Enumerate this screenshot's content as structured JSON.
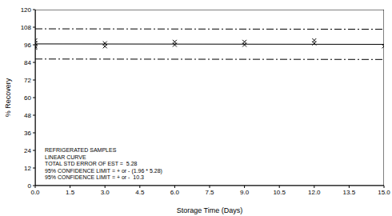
{
  "chart_data": {
    "type": "scatter",
    "x_label": "Storage Time (Days)",
    "y_label": "% Recovery",
    "xlim": [
      0,
      15
    ],
    "xticks": [
      {
        "value": 0,
        "label": "0.0"
      },
      1.5,
      {
        "value": 3,
        "label": "3.0"
      },
      4.5,
      {
        "value": 6,
        "label": "6.0"
      },
      7.5,
      {
        "value": 9,
        "label": "9.0"
      },
      10.5,
      {
        "value": 12,
        "label": "12.0"
      },
      13.5,
      {
        "value": 15,
        "label": "15.0"
      }
    ],
    "ylim": [
      0,
      120
    ],
    "yticks": [
      0,
      12,
      24,
      36,
      48,
      60,
      72,
      84,
      96,
      108,
      120
    ],
    "grid": false,
    "annotations": [
      "REFRIGERATED SAMPLES",
      "LINEAR CURVE",
      "TOTAL STD ERROR OF EST =  5.28",
      "95% CONFIDENCE LIMIT = + or - (1.96 * 5.28)",
      "95% CONFIDENCE LIMIT = + or -  10.3"
    ],
    "series": [
      {
        "type": "scatter",
        "marker": "x",
        "color": "#000000",
        "x": [
          0,
          0,
          0,
          0,
          3,
          3,
          6,
          6,
          9,
          9,
          12,
          12,
          15
        ],
        "values": [
          99,
          97,
          95,
          94,
          97,
          95,
          98,
          96,
          98,
          96,
          99,
          97,
          95
        ]
      },
      {
        "type": "line",
        "line_style": "solid",
        "color": "#000000",
        "x": [
          0,
          15
        ],
        "values": [
          96.6,
          96.3
        ]
      },
      {
        "type": "line",
        "line_style": "dashdot",
        "color": "#000000",
        "x": [
          0,
          15
        ],
        "values": [
          106.9,
          106.6
        ]
      },
      {
        "type": "line",
        "line_style": "dashdot",
        "color": "#000000",
        "x": [
          0,
          15
        ],
        "values": [
          86.3,
          86.0
        ]
      }
    ]
  }
}
